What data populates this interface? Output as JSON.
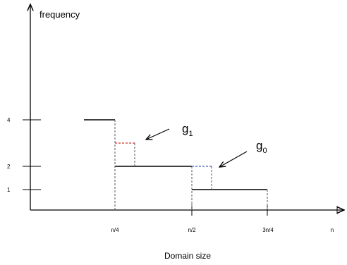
{
  "axes": {
    "y_label": "frequency",
    "x_label": "Domain size"
  },
  "y_ticks": [
    "4",
    "2",
    "1"
  ],
  "x_ticks": [
    "n/4",
    "n/2",
    "3n/4",
    "n"
  ],
  "annotations": {
    "g1": {
      "base": "g",
      "sub": "1",
      "color": "#d9534f"
    },
    "g0": {
      "base": "g",
      "sub": "0",
      "color": "#5b7fc4"
    }
  },
  "colors": {
    "axis": "#000000",
    "step": "#000000",
    "dashed": "#555555"
  }
}
